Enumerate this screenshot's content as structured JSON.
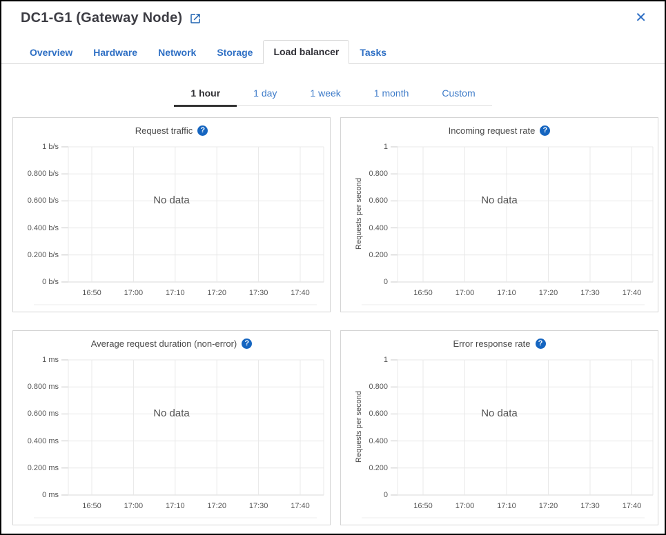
{
  "header": {
    "title": "DC1-G1 (Gateway Node)",
    "close_glyph": "✕"
  },
  "icons": {
    "help_glyph": "?"
  },
  "tabs": [
    {
      "label": "Overview",
      "active": false
    },
    {
      "label": "Hardware",
      "active": false
    },
    {
      "label": "Network",
      "active": false
    },
    {
      "label": "Storage",
      "active": false
    },
    {
      "label": "Load balancer",
      "active": true
    },
    {
      "label": "Tasks",
      "active": false
    }
  ],
  "time_range": {
    "options": [
      {
        "label": "1 hour",
        "active": true
      },
      {
        "label": "1 day",
        "active": false
      },
      {
        "label": "1 week",
        "active": false
      },
      {
        "label": "1 month",
        "active": false
      },
      {
        "label": "Custom",
        "active": false
      }
    ]
  },
  "charts": [
    {
      "title": "Request traffic",
      "y_axis_label": null,
      "y_ticks": [
        "1 b/s",
        "0.800 b/s",
        "0.600 b/s",
        "0.400 b/s",
        "0.200 b/s",
        "0 b/s"
      ],
      "x_ticks": [
        "16:50",
        "17:00",
        "17:10",
        "17:20",
        "17:30",
        "17:40"
      ],
      "no_data": "No data"
    },
    {
      "title": "Incoming request rate",
      "y_axis_label": "Requests per second",
      "y_ticks": [
        "1",
        "0.800",
        "0.600",
        "0.400",
        "0.200",
        "0"
      ],
      "x_ticks": [
        "16:50",
        "17:00",
        "17:10",
        "17:20",
        "17:30",
        "17:40"
      ],
      "no_data": "No data"
    },
    {
      "title": "Average request duration (non-error)",
      "y_axis_label": null,
      "y_ticks": [
        "1 ms",
        "0.800 ms",
        "0.600 ms",
        "0.400 ms",
        "0.200 ms",
        "0 ms"
      ],
      "x_ticks": [
        "16:50",
        "17:00",
        "17:10",
        "17:20",
        "17:30",
        "17:40"
      ],
      "no_data": "No data"
    },
    {
      "title": "Error response rate",
      "y_axis_label": "Requests per second",
      "y_ticks": [
        "1",
        "0.800",
        "0.600",
        "0.400",
        "0.200",
        "0"
      ],
      "x_ticks": [
        "16:50",
        "17:00",
        "17:10",
        "17:20",
        "17:30",
        "17:40"
      ],
      "no_data": "No data"
    }
  ],
  "chart_data": [
    {
      "type": "line",
      "title": "Request traffic",
      "ylabel": "",
      "ylim": [
        0,
        1
      ],
      "y_unit": "b/s",
      "x": [
        "16:50",
        "17:00",
        "17:10",
        "17:20",
        "17:30",
        "17:40"
      ],
      "series": [],
      "annotations": [
        "No data"
      ],
      "grid": true,
      "legend_position": "none"
    },
    {
      "type": "line",
      "title": "Incoming request rate",
      "ylabel": "Requests per second",
      "ylim": [
        0,
        1
      ],
      "x": [
        "16:50",
        "17:00",
        "17:10",
        "17:20",
        "17:30",
        "17:40"
      ],
      "series": [],
      "annotations": [
        "No data"
      ],
      "grid": true,
      "legend_position": "none"
    },
    {
      "type": "line",
      "title": "Average request duration (non-error)",
      "ylabel": "",
      "ylim": [
        0,
        1
      ],
      "y_unit": "ms",
      "x": [
        "16:50",
        "17:00",
        "17:10",
        "17:20",
        "17:30",
        "17:40"
      ],
      "series": [],
      "annotations": [
        "No data"
      ],
      "grid": true,
      "legend_position": "none"
    },
    {
      "type": "line",
      "title": "Error response rate",
      "ylabel": "Requests per second",
      "ylim": [
        0,
        1
      ],
      "x": [
        "16:50",
        "17:00",
        "17:10",
        "17:20",
        "17:30",
        "17:40"
      ],
      "series": [],
      "annotations": [
        "No data"
      ],
      "grid": true,
      "legend_position": "none"
    }
  ],
  "colors": {
    "link_blue": "#2e6fc4",
    "help_icon_blue": "#1565c0",
    "active_text": "#2f2f33",
    "gridline": "#e8e8e8",
    "panel_border": "#d4d4d4"
  }
}
